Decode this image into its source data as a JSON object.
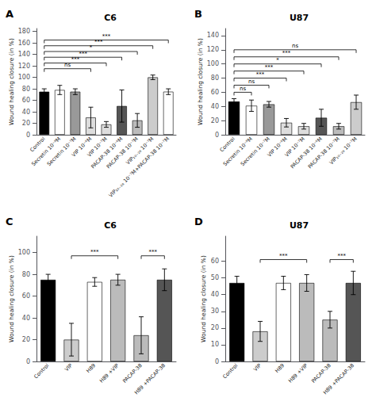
{
  "chart_data": [
    {
      "type": "bar",
      "title": "C6",
      "panel_label": "A",
      "ylabel": "Wound healing closure (in %)",
      "categories": [
        "Control",
        "Secretin 10⁻⁸M",
        "Secretin 10⁻⁷M",
        "VIP 10⁻⁶M",
        "VIP 10⁻⁷M",
        "PACAP-38 10⁻⁶M",
        "PACAP-38 10⁻⁷M",
        "VIP₁₀₋₂₈ 10⁻⁷M",
        "VIP₁₀₋₂₈ 10⁻⁷M+PACAP-38 10⁻⁷M"
      ],
      "values": [
        75,
        78,
        75,
        30,
        18,
        50,
        25,
        100,
        75
      ],
      "errors": [
        5,
        8,
        5,
        18,
        5,
        28,
        12,
        4,
        5
      ],
      "colors": [
        "#000000",
        "#ffffff",
        "#999999",
        "#dddddd",
        "#dddddd",
        "#555555",
        "#bbbbbb",
        "#cccccc",
        "#ffffff"
      ],
      "ylim": [
        0,
        185
      ],
      "yticks": [
        0,
        20,
        40,
        60,
        80,
        100,
        120,
        140,
        160,
        180
      ],
      "grid": false,
      "annotations": [
        {
          "from": "Control",
          "to": "VIP 10⁻⁶M",
          "y": 115,
          "text": "ns"
        },
        {
          "from": "Control",
          "to": "VIP 10⁻⁷M",
          "y": 125,
          "text": "***"
        },
        {
          "from": "Control",
          "to": "PACAP-38 10⁻⁶M",
          "y": 135,
          "text": "***"
        },
        {
          "from": "Control",
          "to": "PACAP-38 10⁻⁷M",
          "y": 145,
          "text": "*"
        },
        {
          "from": "Control",
          "to": "VIP₁₀₋₂₈ 10⁻⁷M",
          "y": 155,
          "text": "***"
        },
        {
          "from": "Control",
          "to": "VIP₁₀₋₂₈ 10⁻⁷M+PACAP-38 10⁻⁷M",
          "y": 165,
          "text": "***"
        }
      ]
    },
    {
      "type": "bar",
      "title": "U87",
      "panel_label": "B",
      "ylabel": "Wound healing closure (in %)",
      "categories": [
        "Control",
        "Secretin 10⁻⁸M",
        "Secretin 10⁻⁷M",
        "VIP 10⁻⁶M",
        "VIP 10⁻⁷M",
        "PACAP-38 10⁻⁶M",
        "PACAP-38 10⁻⁷M",
        "VIP₁₀₋₂₈ 10⁻⁷M"
      ],
      "values": [
        47,
        41,
        43,
        17,
        12,
        24,
        12,
        46
      ],
      "errors": [
        4,
        8,
        4,
        6,
        4,
        12,
        4,
        10
      ],
      "colors": [
        "#000000",
        "#ffffff",
        "#999999",
        "#dddddd",
        "#dddddd",
        "#555555",
        "#bbbbbb",
        "#cccccc"
      ],
      "ylim": [
        0,
        150
      ],
      "yticks": [
        0,
        20,
        40,
        60,
        80,
        100,
        120,
        140
      ],
      "grid": false,
      "annotations": [
        {
          "from": "Control",
          "to": "Secretin 10⁻⁸M",
          "y": 60,
          "text": "ns"
        },
        {
          "from": "Control",
          "to": "Secretin 10⁻⁷M",
          "y": 70,
          "text": "ns"
        },
        {
          "from": "Control",
          "to": "VIP 10⁻⁶M",
          "y": 80,
          "text": "***"
        },
        {
          "from": "Control",
          "to": "VIP 10⁻⁷M",
          "y": 90,
          "text": "***"
        },
        {
          "from": "Control",
          "to": "PACAP-38 10⁻⁶M",
          "y": 100,
          "text": "*"
        },
        {
          "from": "Control",
          "to": "PACAP-38 10⁻⁷M",
          "y": 110,
          "text": "***"
        },
        {
          "from": "Control",
          "to": "VIP₁₀₋₂₈ 10⁻⁷M",
          "y": 120,
          "text": "ns"
        }
      ]
    },
    {
      "type": "bar",
      "title": "C6",
      "panel_label": "C",
      "ylabel": "Wound healing closure (in %)",
      "categories": [
        "Control",
        "VIP",
        "H89",
        "H89 +VIP",
        "PACAP-38",
        "H89 +PACAP-38"
      ],
      "values": [
        75,
        20,
        73,
        75,
        24,
        75
      ],
      "errors": [
        5,
        15,
        4,
        5,
        17,
        10
      ],
      "colors": [
        "#000000",
        "#cccccc",
        "#ffffff",
        "#bbbbbb",
        "#bbbbbb",
        "#555555"
      ],
      "ylim": [
        0,
        115
      ],
      "yticks": [
        0,
        20,
        40,
        60,
        80,
        100
      ],
      "grid": false,
      "annotations": [
        {
          "from": "VIP",
          "to": "H89 +VIP",
          "y": 97,
          "text": "***"
        },
        {
          "from": "PACAP-38",
          "to": "H89 +PACAP-38",
          "y": 97,
          "text": "***"
        }
      ]
    },
    {
      "type": "bar",
      "title": "U87",
      "panel_label": "D",
      "ylabel": "Wound healing closure (in %)",
      "categories": [
        "Control",
        "VIP",
        "H89",
        "H89 +VIP",
        "PACAP-38",
        "H89 +PACAP-38"
      ],
      "values": [
        47,
        18,
        47,
        47,
        25,
        47
      ],
      "errors": [
        4,
        6,
        4,
        5,
        5,
        7
      ],
      "colors": [
        "#000000",
        "#cccccc",
        "#ffffff",
        "#bbbbbb",
        "#bbbbbb",
        "#555555"
      ],
      "ylim": [
        0,
        75
      ],
      "yticks": [
        0,
        10,
        20,
        30,
        40,
        50,
        60
      ],
      "grid": false,
      "annotations": [
        {
          "from": "VIP",
          "to": "H89 +VIP",
          "y": 61,
          "text": "***"
        },
        {
          "from": "PACAP-38",
          "to": "H89 +PACAP-38",
          "y": 61,
          "text": "***"
        }
      ]
    }
  ]
}
